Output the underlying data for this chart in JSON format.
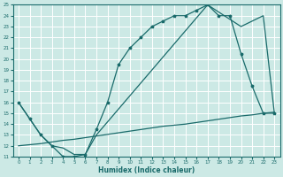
{
  "xlabel": "Humidex (Indice chaleur)",
  "xlim": [
    -0.5,
    23.5
  ],
  "ylim": [
    11,
    25
  ],
  "xticks": [
    0,
    1,
    2,
    3,
    4,
    5,
    6,
    7,
    8,
    9,
    10,
    11,
    12,
    13,
    14,
    15,
    16,
    17,
    18,
    19,
    20,
    21,
    22,
    23
  ],
  "yticks": [
    11,
    12,
    13,
    14,
    15,
    16,
    17,
    18,
    19,
    20,
    21,
    22,
    23,
    24,
    25
  ],
  "background_color": "#cce9e5",
  "grid_color": "#ffffff",
  "line_color": "#1a6b6b",
  "line1_x": [
    0,
    1,
    2,
    3,
    4,
    5,
    6,
    7,
    8,
    9,
    10,
    11,
    12,
    13,
    14,
    15,
    16,
    17,
    18,
    19,
    20,
    21,
    22,
    23
  ],
  "line1_y": [
    16,
    14.5,
    13,
    12,
    11,
    11,
    11.2,
    13.5,
    16,
    19.5,
    21,
    22,
    23,
    23.5,
    24,
    24,
    24.5,
    25,
    24,
    24,
    20.5,
    17.5,
    15,
    15
  ],
  "line2_x": [
    0,
    2,
    3,
    4,
    5,
    6,
    7,
    17,
    20,
    22,
    23
  ],
  "line2_y": [
    16,
    13,
    12,
    11.8,
    11.2,
    11.2,
    13.0,
    25,
    23,
    24,
    15
  ],
  "line3_x": [
    0,
    1,
    2,
    3,
    4,
    5,
    6,
    7,
    8,
    9,
    10,
    11,
    12,
    13,
    14,
    15,
    16,
    17,
    18,
    19,
    20,
    21,
    22,
    23
  ],
  "line3_y": [
    12.0,
    12.1,
    12.2,
    12.35,
    12.5,
    12.6,
    12.75,
    12.9,
    13.05,
    13.2,
    13.35,
    13.5,
    13.65,
    13.8,
    13.9,
    14.0,
    14.15,
    14.3,
    14.45,
    14.6,
    14.75,
    14.85,
    15.0,
    15.1
  ]
}
